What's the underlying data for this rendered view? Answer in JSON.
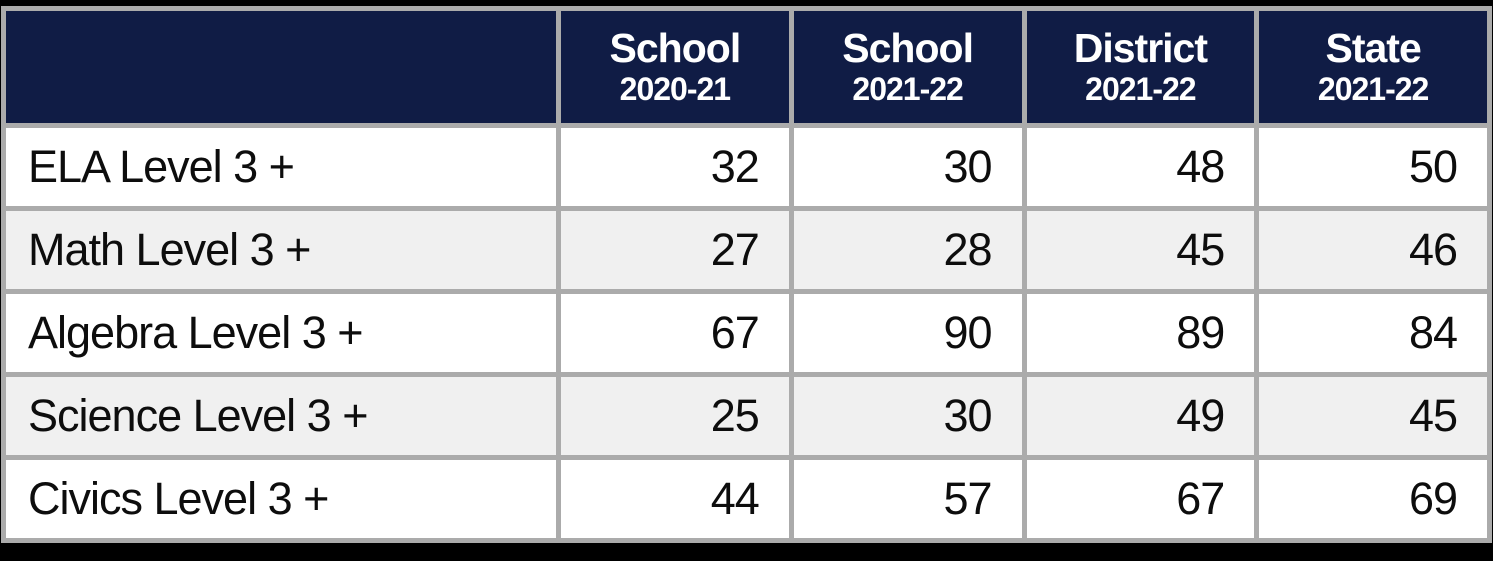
{
  "chart_data": {
    "type": "table",
    "title": "",
    "columns": [
      {
        "title": "School",
        "subtitle": "2020-21"
      },
      {
        "title": "School",
        "subtitle": "2021-22"
      },
      {
        "title": "District",
        "subtitle": "2021-22"
      },
      {
        "title": "State",
        "subtitle": "2021-22"
      }
    ],
    "rows": [
      {
        "label": "ELA Level 3 +",
        "values": [
          32,
          30,
          48,
          50
        ]
      },
      {
        "label": "Math Level 3 +",
        "values": [
          27,
          28,
          45,
          46
        ]
      },
      {
        "label": "Algebra Level 3 +",
        "values": [
          67,
          90,
          89,
          84
        ]
      },
      {
        "label": "Science Level 3 +",
        "values": [
          25,
          30,
          49,
          45
        ]
      },
      {
        "label": "Civics Level 3 +",
        "values": [
          44,
          57,
          67,
          69
        ]
      }
    ]
  },
  "colors": {
    "header_bg": "#101c45",
    "grid_line": "#ababab",
    "row_bg": "#ffffff",
    "row_alt_bg": "#f0f0f0",
    "frame": "#000000",
    "header_text": "#ffffff",
    "body_text": "#0d0d0d"
  }
}
